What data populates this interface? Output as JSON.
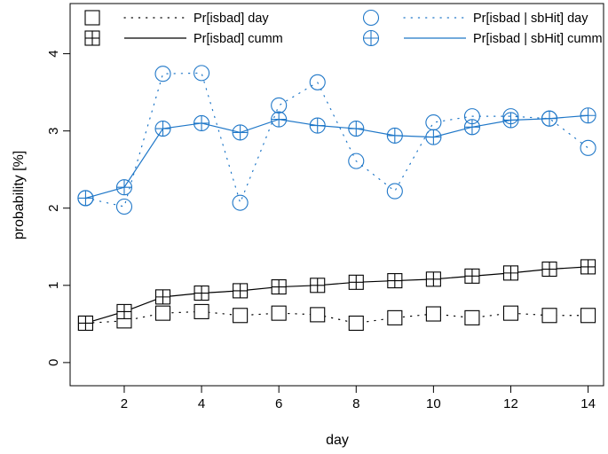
{
  "chart_data": {
    "type": "line",
    "xlabel": "day",
    "ylabel": "probability [%]",
    "xlim": [
      0.6,
      14.4
    ],
    "ylim": [
      -0.3,
      4.65
    ],
    "x_ticks": [
      2,
      4,
      6,
      8,
      10,
      12,
      14
    ],
    "y_ticks": [
      0,
      1,
      2,
      3,
      4
    ],
    "x_tick_labels": [
      "2",
      "4",
      "6",
      "8",
      "10",
      "12",
      "14"
    ],
    "y_tick_labels": [
      "0",
      "1",
      "2",
      "3",
      "4"
    ],
    "legend_position": "top",
    "x": [
      1,
      2,
      3,
      4,
      5,
      6,
      7,
      8,
      9,
      10,
      11,
      12,
      13,
      14
    ],
    "series": [
      {
        "name": "Pr[isbad] day",
        "color": "#000000",
        "line": "dotted",
        "marker": "square",
        "values": [
          0.51,
          0.54,
          0.64,
          0.66,
          0.61,
          0.64,
          0.62,
          0.51,
          0.58,
          0.63,
          0.58,
          0.64,
          0.61,
          0.61
        ]
      },
      {
        "name": "Pr[isbad] cumm",
        "color": "#000000",
        "line": "solid",
        "marker": "square-plus",
        "values": [
          0.51,
          0.66,
          0.85,
          0.9,
          0.93,
          0.98,
          1.0,
          1.04,
          1.06,
          1.08,
          1.12,
          1.16,
          1.21,
          1.24
        ]
      },
      {
        "name": "Pr[isbad | sbHit] day",
        "color": "#1f77c8",
        "line": "dotted",
        "marker": "circle",
        "values": [
          2.13,
          2.02,
          3.74,
          3.75,
          2.07,
          3.33,
          3.63,
          2.61,
          2.22,
          3.11,
          3.19,
          3.19,
          3.16,
          2.78
        ]
      },
      {
        "name": "Pr[isbad | sbHit] cumm",
        "color": "#1f77c8",
        "line": "solid",
        "marker": "circle-plus",
        "values": [
          2.13,
          2.27,
          3.03,
          3.1,
          2.98,
          3.15,
          3.07,
          3.03,
          2.94,
          2.92,
          3.05,
          3.14,
          3.16,
          3.2
        ]
      }
    ]
  }
}
